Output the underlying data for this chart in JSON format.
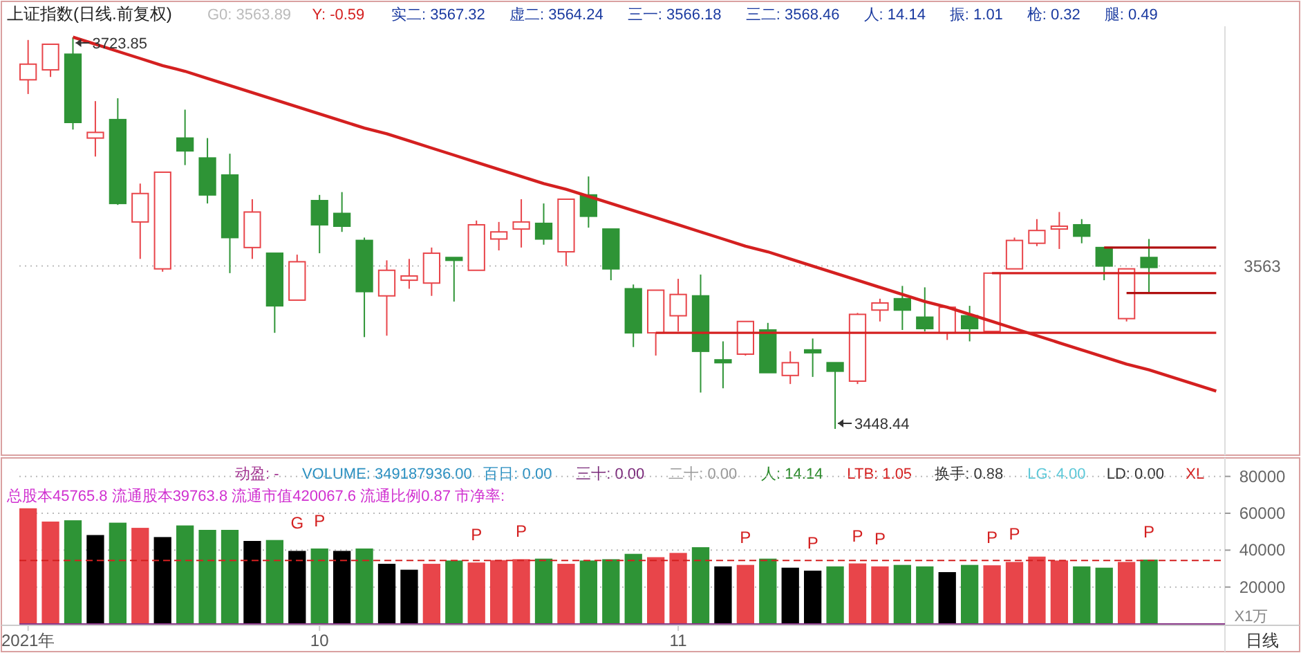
{
  "chart_data": [
    {
      "type": "candlestick",
      "title": "上证指数(日线.前复权)",
      "categories": [
        null,
        null,
        null,
        null,
        null,
        null,
        null,
        null,
        null,
        null,
        null,
        null,
        null,
        null,
        null,
        null,
        null,
        null,
        null,
        null,
        null,
        null,
        null,
        null,
        null,
        null,
        null,
        null,
        null,
        null,
        null,
        null,
        null,
        null,
        null,
        null,
        null,
        null,
        null,
        null,
        null,
        null,
        null,
        null,
        null,
        null,
        null,
        null,
        null,
        null,
        null,
        null,
        null,
        null
      ],
      "ohlc": [
        [
          3694,
          3722,
          3684,
          3705
        ],
        [
          3701,
          3719,
          3696,
          3719
        ],
        [
          3712,
          3723.85,
          3659,
          3664
        ],
        [
          3653,
          3679,
          3640,
          3657
        ],
        [
          3666,
          3681,
          3606,
          3607
        ],
        [
          3594,
          3621,
          3568,
          3614
        ],
        [
          3561,
          3629,
          3559,
          3629
        ],
        [
          3653,
          3673,
          3634,
          3644
        ],
        [
          3639,
          3653,
          3607,
          3613
        ],
        [
          3627,
          3642,
          3558,
          3583
        ],
        [
          3576,
          3610,
          3568,
          3601
        ],
        [
          3572,
          3572,
          3516,
          3535
        ],
        [
          3539,
          3571,
          3539,
          3566
        ],
        [
          3609,
          3613,
          3572,
          3592
        ],
        [
          3600,
          3615,
          3587,
          3591
        ],
        [
          3581,
          3583,
          3513,
          3545
        ],
        [
          3542,
          3567,
          3514,
          3560
        ],
        [
          3553,
          3568,
          3547,
          3556
        ],
        [
          3551,
          3576,
          3542,
          3572
        ],
        [
          3569,
          3569,
          3538,
          3567
        ],
        [
          3560,
          3595,
          3560,
          3592
        ],
        [
          3582,
          3594,
          3574,
          3587
        ],
        [
          3589,
          3610,
          3576,
          3594
        ],
        [
          3593,
          3607,
          3578,
          3582
        ],
        [
          3573,
          3610,
          3563,
          3610
        ],
        [
          3613,
          3626,
          3590,
          3598
        ],
        [
          3589,
          3589,
          3553,
          3561
        ],
        [
          3547,
          3550,
          3506,
          3516
        ],
        [
          3516,
          3546,
          3500,
          3546
        ],
        [
          3528,
          3554,
          3517,
          3543
        ],
        [
          3542,
          3557,
          3474,
          3503
        ],
        [
          3497,
          3510,
          3477,
          3495
        ],
        [
          3501,
          3524,
          3500,
          3524
        ],
        [
          3518,
          3523,
          3488,
          3488
        ],
        [
          3486,
          3503,
          3480,
          3495
        ],
        [
          3504,
          3512,
          3485,
          3502
        ],
        [
          3495,
          3495,
          3448.44,
          3489
        ],
        [
          3482,
          3530,
          3480,
          3529
        ],
        [
          3532,
          3540,
          3524,
          3537
        ],
        [
          3540,
          3549,
          3518,
          3532
        ],
        [
          3527,
          3548,
          3517,
          3519
        ],
        [
          3516,
          3534,
          3511,
          3534
        ],
        [
          3528,
          3535,
          3510,
          3519
        ],
        [
          3517,
          3558,
          3517,
          3558
        ],
        [
          3561,
          3583,
          3561,
          3581
        ],
        [
          3579,
          3596,
          3577,
          3588
        ],
        [
          3589,
          3601,
          3575,
          3591
        ],
        [
          3592,
          3596,
          3579,
          3584
        ],
        [
          3576,
          3576,
          3553,
          3563
        ],
        [
          3526,
          3561,
          3524,
          3561
        ],
        [
          3569,
          3582,
          3544,
          3562
        ],
        null,
        null,
        null
      ],
      "series": [
        {
          "type": "line",
          "color": "#d42020",
          "values": [
            null,
            null,
            3724,
            3719,
            3714,
            3709,
            3704,
            3700,
            3695,
            3690,
            3685,
            3680,
            3675,
            3670,
            3665,
            3660,
            3656,
            3651,
            3646,
            3641,
            3636,
            3631,
            3626,
            3621,
            3617,
            3612,
            3607,
            3602,
            3597,
            3592,
            3587,
            3582,
            3577,
            3573,
            3568,
            3563,
            3558,
            3553,
            3548,
            3543,
            3538,
            3534,
            3529,
            3524,
            3519,
            3514,
            3509,
            3504,
            3499,
            3494,
            3490,
            3485,
            3480,
            3475
          ]
        },
        {
          "type": "line",
          "color": "#d42020",
          "values": [
            null,
            null,
            null,
            null,
            null,
            null,
            null,
            null,
            null,
            null,
            null,
            null,
            null,
            null,
            null,
            null,
            null,
            null,
            null,
            null,
            null,
            null,
            null,
            null,
            null,
            null,
            null,
            null,
            3516,
            3516,
            3516,
            3516,
            3516,
            3516,
            3516,
            3516,
            3516,
            3516,
            3516,
            3516,
            3516,
            3516,
            3516,
            3516,
            3516,
            3516,
            3516,
            3516,
            3516,
            3516,
            3516,
            3516,
            3516,
            3516
          ]
        },
        {
          "type": "line",
          "color": "#d42020",
          "values": [
            null,
            null,
            null,
            null,
            null,
            null,
            null,
            null,
            null,
            null,
            null,
            null,
            null,
            null,
            null,
            null,
            null,
            null,
            null,
            null,
            null,
            null,
            null,
            null,
            null,
            null,
            null,
            null,
            null,
            null,
            null,
            null,
            null,
            null,
            null,
            null,
            null,
            null,
            null,
            null,
            null,
            null,
            null,
            3558,
            3558,
            3558,
            3558,
            3558,
            3558,
            3558,
            3558,
            3558,
            3558,
            3558
          ]
        },
        {
          "type": "line",
          "color": "#b01010",
          "values": [
            null,
            null,
            null,
            null,
            null,
            null,
            null,
            null,
            null,
            null,
            null,
            null,
            null,
            null,
            null,
            null,
            null,
            null,
            null,
            null,
            null,
            null,
            null,
            null,
            null,
            null,
            null,
            null,
            null,
            null,
            null,
            null,
            null,
            null,
            null,
            null,
            null,
            null,
            null,
            null,
            null,
            null,
            null,
            null,
            null,
            null,
            null,
            null,
            3576,
            3576,
            3576,
            3576,
            3576,
            3576
          ]
        },
        {
          "type": "line",
          "color": "#b01010",
          "values": [
            null,
            null,
            null,
            null,
            null,
            null,
            null,
            null,
            null,
            null,
            null,
            null,
            null,
            null,
            null,
            null,
            null,
            null,
            null,
            null,
            null,
            null,
            null,
            null,
            null,
            null,
            null,
            null,
            null,
            null,
            null,
            null,
            null,
            null,
            null,
            null,
            null,
            null,
            null,
            null,
            null,
            null,
            null,
            null,
            null,
            null,
            null,
            null,
            null,
            3544,
            3544,
            3544,
            3544,
            3544
          ]
        }
      ],
      "ref_lines": [
        {
          "axis": "y",
          "value": 3563,
          "label": "3563",
          "line_style": "dotted",
          "color": "#bbbbbb"
        }
      ],
      "annotations": [
        "G0: 3563.89",
        "Y: -0.59",
        "实二: 3567.32",
        "虚二: 3564.24",
        "三一: 3566.18",
        "三二: 3568.46",
        "人: 14.14",
        "振: 1.01",
        "枪: 0.32",
        "腿: 0.49",
        "3723.85",
        "3448.44"
      ]
    },
    {
      "type": "bar",
      "subtitle": "总股本45765.8  流通股本39763.8  流通市值420067.6  流通比例0.87  市净率:",
      "xlabel": "日线",
      "ylabel": "X1万",
      "categories": [
        "2021年",
        null,
        null,
        null,
        null,
        null,
        null,
        null,
        null,
        null,
        null,
        null,
        null,
        "10",
        null,
        null,
        null,
        null,
        null,
        null,
        null,
        null,
        null,
        null,
        null,
        null,
        null,
        null,
        null,
        "11",
        null,
        null,
        null,
        null,
        null,
        null,
        null,
        null,
        null,
        null,
        null,
        null,
        null,
        null,
        null,
        null,
        null,
        null,
        null,
        null,
        null,
        null,
        null,
        null
      ],
      "values": [
        62700,
        55500,
        56200,
        48200,
        54900,
        52100,
        47100,
        53400,
        51000,
        51000,
        45000,
        45500,
        39600,
        40900,
        39600,
        40900,
        32600,
        29400,
        32600,
        34400,
        33300,
        34600,
        35100,
        35400,
        32600,
        34400,
        35100,
        38000,
        36200,
        38500,
        41600,
        31200,
        32000,
        35400,
        30500,
        28900,
        31200,
        32800,
        31200,
        32000,
        31200,
        28100,
        32000,
        31800,
        33600,
        36500,
        34400,
        31200,
        30500,
        33600,
        34900,
        null,
        null,
        null
      ],
      "colors": [
        "#e8454a",
        "#e8454a",
        "#2e9436",
        "#000000",
        "#2e9436",
        "#e8454a",
        "#000000",
        "#2e9436",
        "#2e9436",
        "#2e9436",
        "#000000",
        "#2e9436",
        "#000000",
        "#2e9436",
        "#000000",
        "#2e9436",
        "#000000",
        "#000000",
        "#e8454a",
        "#2e9436",
        "#e8454a",
        "#e8454a",
        "#e8454a",
        "#2e9436",
        "#e8454a",
        "#2e9436",
        "#2e9436",
        "#2e9436",
        "#e8454a",
        "#e8454a",
        "#2e9436",
        "#000000",
        "#e8454a",
        "#2e9436",
        "#000000",
        "#000000",
        "#2e9436",
        "#e8454a",
        "#e8454a",
        "#2e9436",
        "#2e9436",
        "#000000",
        "#2e9436",
        "#e8454a",
        "#e8454a",
        "#e8454a",
        "#e8454a",
        "#2e9436",
        "#2e9436",
        "#e8454a",
        "#2e9436",
        null,
        null,
        null
      ],
      "value_labels": [
        null,
        null,
        null,
        null,
        null,
        null,
        null,
        null,
        null,
        null,
        null,
        null,
        "G",
        "P",
        null,
        null,
        null,
        null,
        null,
        null,
        "P",
        null,
        "P",
        null,
        null,
        null,
        null,
        null,
        null,
        null,
        null,
        null,
        "P",
        null,
        null,
        "P",
        null,
        "P",
        "P",
        null,
        null,
        null,
        null,
        "P",
        "P",
        null,
        null,
        null,
        null,
        null,
        "P",
        null,
        null,
        null
      ],
      "ylim": [
        0,
        90000
      ],
      "yticks": [
        20000,
        40000,
        60000,
        80000
      ],
      "grid": "y",
      "ref_lines": [
        {
          "axis": "y",
          "value": 34400,
          "line_style": "dashed",
          "color": "#d42020"
        }
      ],
      "annotations": [
        "动盈: -",
        "VOLUME: 349187936.00",
        "百日: 0.00",
        "三十: 0.00",
        "二十: 0.00",
        "人: 14.14",
        "LTB: 1.05",
        "换手: 0.88",
        "LG: 4.00",
        "LD: 0.00",
        "XL"
      ]
    }
  ]
}
